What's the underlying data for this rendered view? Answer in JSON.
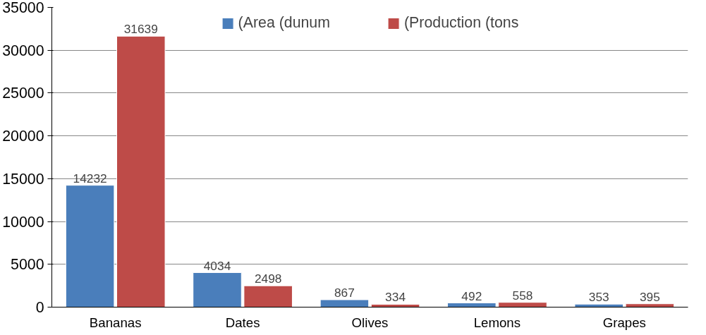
{
  "chart_data": {
    "type": "bar",
    "categories": [
      "Bananas",
      "Dates",
      "Olives",
      "Lemons",
      "Grapes"
    ],
    "series": [
      {
        "name": "(Area (dunum",
        "color": "#4a7ebb",
        "values": [
          14232,
          4034,
          867,
          492,
          353
        ]
      },
      {
        "name": "(Production (tons",
        "color": "#be4b48",
        "values": [
          31639,
          2498,
          334,
          558,
          395
        ]
      }
    ],
    "ylim": [
      0,
      35000
    ],
    "yticks": [
      0,
      5000,
      10000,
      15000,
      20000,
      25000,
      30000,
      35000
    ],
    "grid": "y",
    "legend": "top",
    "data_labels": true
  }
}
